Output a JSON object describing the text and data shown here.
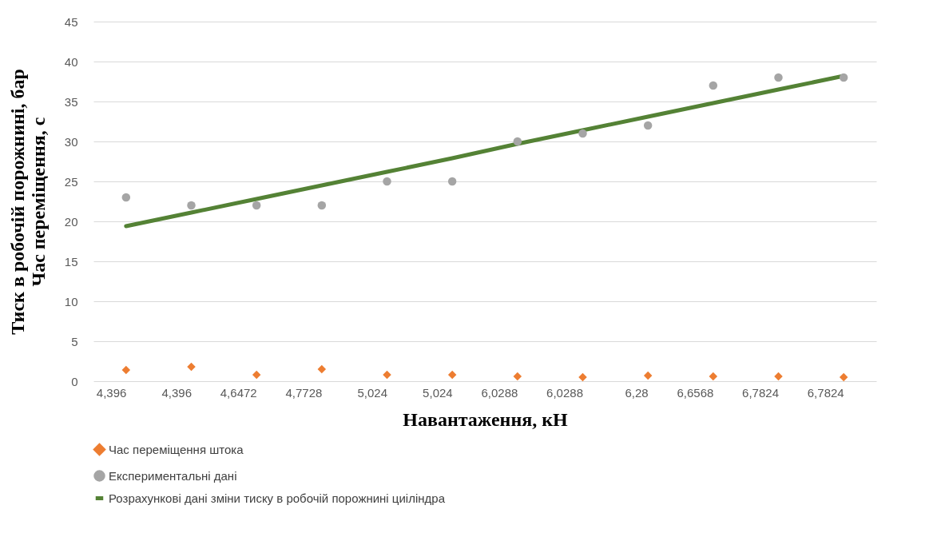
{
  "chart_data": {
    "type": "scatter",
    "xlabel": "Навантаження, кН",
    "ylabel": "Тиск в робочій порожнині, бар\nЧас переміщення, с",
    "categories": [
      "4,396",
      "4,396",
      "4,6472",
      "4,7728",
      "5,024",
      "5,024",
      "6,0288",
      "6,0288",
      "6,28",
      "6,6568",
      "6,7824",
      "6,7824"
    ],
    "ylim": [
      0,
      45
    ],
    "yticks": [
      0,
      5,
      10,
      15,
      20,
      25,
      30,
      35,
      40,
      45
    ],
    "grid": "y",
    "legend": "bottom",
    "series": [
      {
        "name": "Час переміщення штока",
        "marker": "diamond",
        "color": "#ed7d31",
        "values": [
          1.4,
          1.8,
          0.8,
          1.5,
          0.8,
          0.8,
          0.6,
          0.5,
          0.7,
          0.6,
          0.6,
          0.5
        ]
      },
      {
        "name": "Експериментальні дані",
        "marker": "circle",
        "color": "#a5a5a5",
        "values": [
          23,
          22,
          22,
          22,
          25,
          25,
          30,
          31,
          32,
          37,
          38,
          38
        ]
      },
      {
        "name": "Розрахункові дані зміни тиску в робочій порожнині циіліндра",
        "type": "line",
        "line_style": "solid",
        "color": "#548235",
        "values": [
          19.4,
          21.1,
          22.8,
          24.5,
          26.2,
          27.9,
          29.7,
          31.4,
          33.1,
          34.8,
          36.5,
          38.2
        ]
      }
    ]
  }
}
